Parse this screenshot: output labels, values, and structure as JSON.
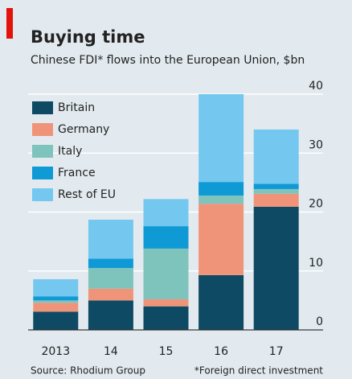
{
  "chart_data": {
    "type": "stacked_bar",
    "title": "Buying time",
    "subtitle": "Chinese FDI* flows into the European Union, $bn",
    "source": "Source: Rhodium Group",
    "note": "*Foreign direct investment",
    "categories": [
      "2013",
      "14",
      "15",
      "16",
      "17"
    ],
    "series": [
      {
        "name": "Britain",
        "color": "#0e4a63",
        "values": [
          3.1,
          5.0,
          4.0,
          9.3,
          20.9
        ]
      },
      {
        "name": "Germany",
        "color": "#ef9479",
        "values": [
          1.5,
          2.0,
          1.2,
          12.1,
          2.2
        ]
      },
      {
        "name": "Italy",
        "color": "#7fc3bd",
        "values": [
          0.4,
          3.5,
          8.6,
          1.4,
          0.8
        ]
      },
      {
        "name": "France",
        "color": "#0f9ad6",
        "values": [
          0.7,
          1.6,
          3.8,
          2.3,
          0.9
        ]
      },
      {
        "name": "Rest of EU",
        "color": "#74c8ef",
        "values": [
          2.9,
          6.6,
          4.6,
          14.9,
          9.2
        ]
      }
    ],
    "ylim": [
      0,
      40
    ],
    "yticks": [
      0,
      10,
      20,
      30,
      40
    ],
    "grid": true,
    "legend": "top-left"
  }
}
